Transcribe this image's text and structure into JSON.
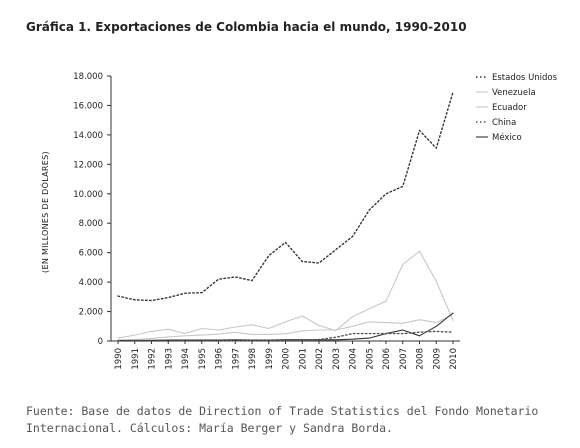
{
  "chart_data": {
    "type": "line",
    "title": "Gráfica 1. Exportaciones de Colombia hacia el mundo, 1990-2010",
    "xlabel": "",
    "ylabel": "(EN MILLONES DE DÓLARES)",
    "ylim": [
      0,
      18000
    ],
    "yticks": [
      0,
      2000,
      4000,
      6000,
      8000,
      10000,
      12000,
      14000,
      16000,
      18000
    ],
    "ytick_labels": [
      "0",
      "2.000",
      "4.000",
      "6.000",
      "8.000",
      "10.000",
      "12.000",
      "14.000",
      "16.000",
      "18.000"
    ],
    "x": [
      "1990",
      "1991",
      "1992",
      "1993",
      "1994",
      "1995",
      "1996",
      "1997",
      "1998",
      "1999",
      "2000",
      "2001",
      "2002",
      "2003",
      "2004",
      "2005",
      "2006",
      "2007",
      "2008",
      "2009",
      "2010"
    ],
    "grid": false,
    "legend_position": "top-right",
    "series": [
      {
        "name": "Estados Unidos",
        "color": "#333333",
        "style": "dotted",
        "values": [
          3050,
          2800,
          2750,
          2950,
          3250,
          3280,
          4200,
          4350,
          4100,
          5800,
          6700,
          5400,
          5300,
          6200,
          7100,
          8900,
          10000,
          10500,
          14300,
          13100,
          16900
        ]
      },
      {
        "name": "Venezuela",
        "color": "#c8c8c8",
        "style": "solid",
        "values": [
          200,
          400,
          650,
          800,
          500,
          850,
          750,
          950,
          1100,
          850,
          1300,
          1700,
          1050,
          700,
          1650,
          2200,
          2700,
          5200,
          6100,
          4050,
          1400
        ]
      },
      {
        "name": "Ecuador",
        "color": "#c8c8c8",
        "style": "solid",
        "values": [
          50,
          100,
          180,
          280,
          350,
          400,
          470,
          590,
          450,
          450,
          490,
          690,
          750,
          750,
          1000,
          1300,
          1250,
          1200,
          1450,
          1250,
          1800
        ]
      },
      {
        "name": "China",
        "color": "#555555",
        "style": "dotted",
        "values": [
          0,
          0,
          0,
          0,
          10,
          10,
          10,
          20,
          20,
          40,
          70,
          60,
          100,
          250,
          500,
          500,
          500,
          500,
          600,
          650,
          600
        ]
      },
      {
        "name": "México",
        "color": "#333333",
        "style": "solid",
        "values": [
          40,
          40,
          50,
          60,
          60,
          70,
          70,
          80,
          70,
          70,
          90,
          90,
          80,
          80,
          120,
          200,
          500,
          750,
          350,
          1000,
          1900
        ]
      }
    ]
  },
  "source_note": "Fuente: Base de datos de Direction of Trade Statistics del Fondo Monetario Internacional. Cálculos: María Berger y Sandra Borda."
}
